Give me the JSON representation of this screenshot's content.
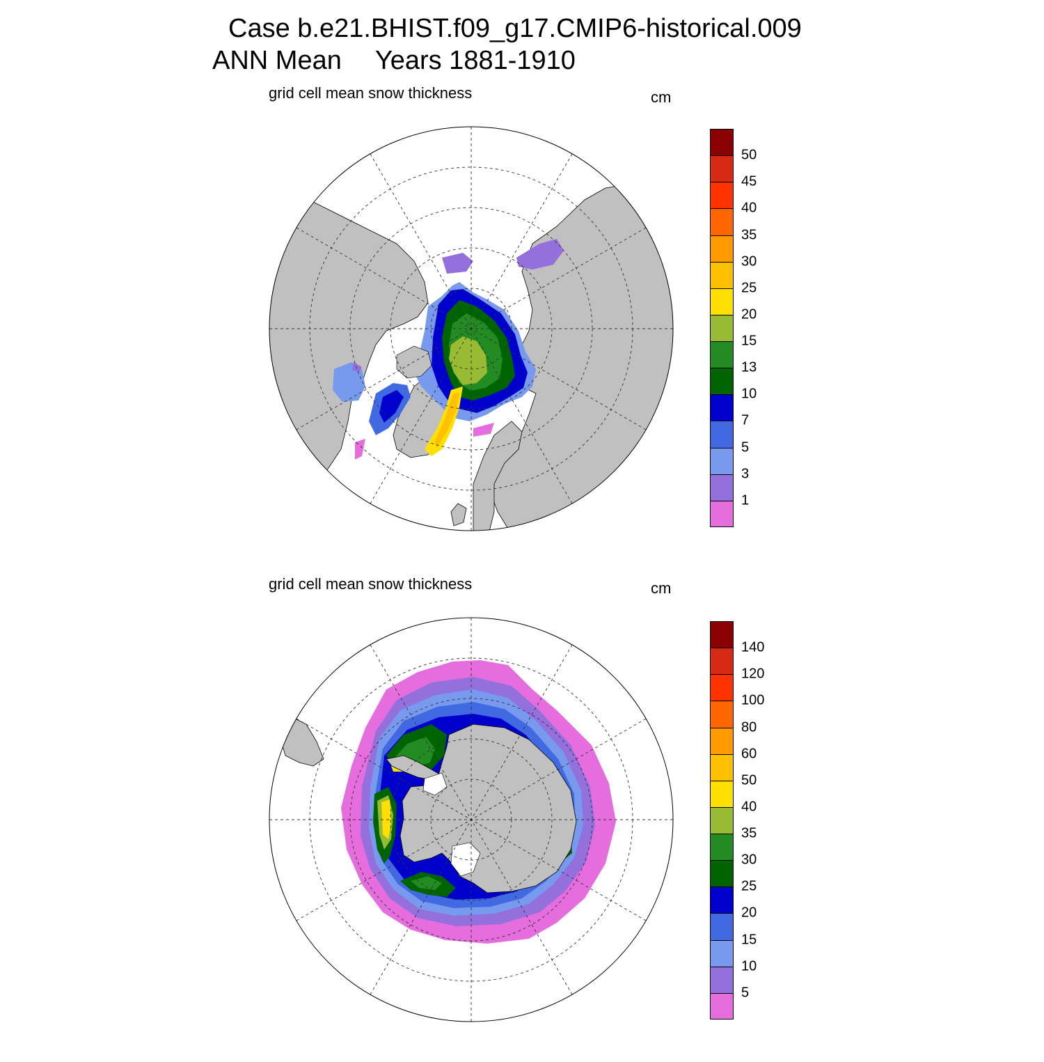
{
  "title": {
    "line1": "Case b.e21.BHIST.f09_g17.CMIP6-historical.009",
    "season": "ANN Mean",
    "years": "Years 1881-1910"
  },
  "panels": [
    {
      "id": "nh",
      "hemisphere": "north",
      "variable_label": "grid cell mean snow thickness",
      "units": "cm",
      "colorbar": {
        "labels": [
          "50",
          "45",
          "40",
          "35",
          "30",
          "25",
          "20",
          "15",
          "13",
          "10",
          "7",
          "5",
          "3",
          "1"
        ],
        "colors": [
          "#8B0000",
          "#D62A14",
          "#FF3300",
          "#FF6600",
          "#FF9900",
          "#FFC000",
          "#FFE000",
          "#99BB33",
          "#228B22",
          "#006400",
          "#0000CD",
          "#4169E1",
          "#7799EE",
          "#9370DB",
          "#E56DDD"
        ]
      }
    },
    {
      "id": "sh",
      "hemisphere": "south",
      "variable_label": "grid cell mean snow thickness",
      "units": "cm",
      "colorbar": {
        "labels": [
          "140",
          "120",
          "100",
          "80",
          "60",
          "50",
          "40",
          "35",
          "30",
          "25",
          "20",
          "15",
          "10",
          "5"
        ],
        "colors": [
          "#8B0000",
          "#D62A14",
          "#FF3300",
          "#FF6600",
          "#FF9900",
          "#FFC000",
          "#FFE000",
          "#99BB33",
          "#228B22",
          "#006400",
          "#0000CD",
          "#4169E1",
          "#7799EE",
          "#9370DB",
          "#E56DDD"
        ]
      }
    }
  ],
  "map_colors": {
    "land": "#C0C0C0",
    "ocean": "#FFFFFF",
    "grid": "#333333"
  }
}
